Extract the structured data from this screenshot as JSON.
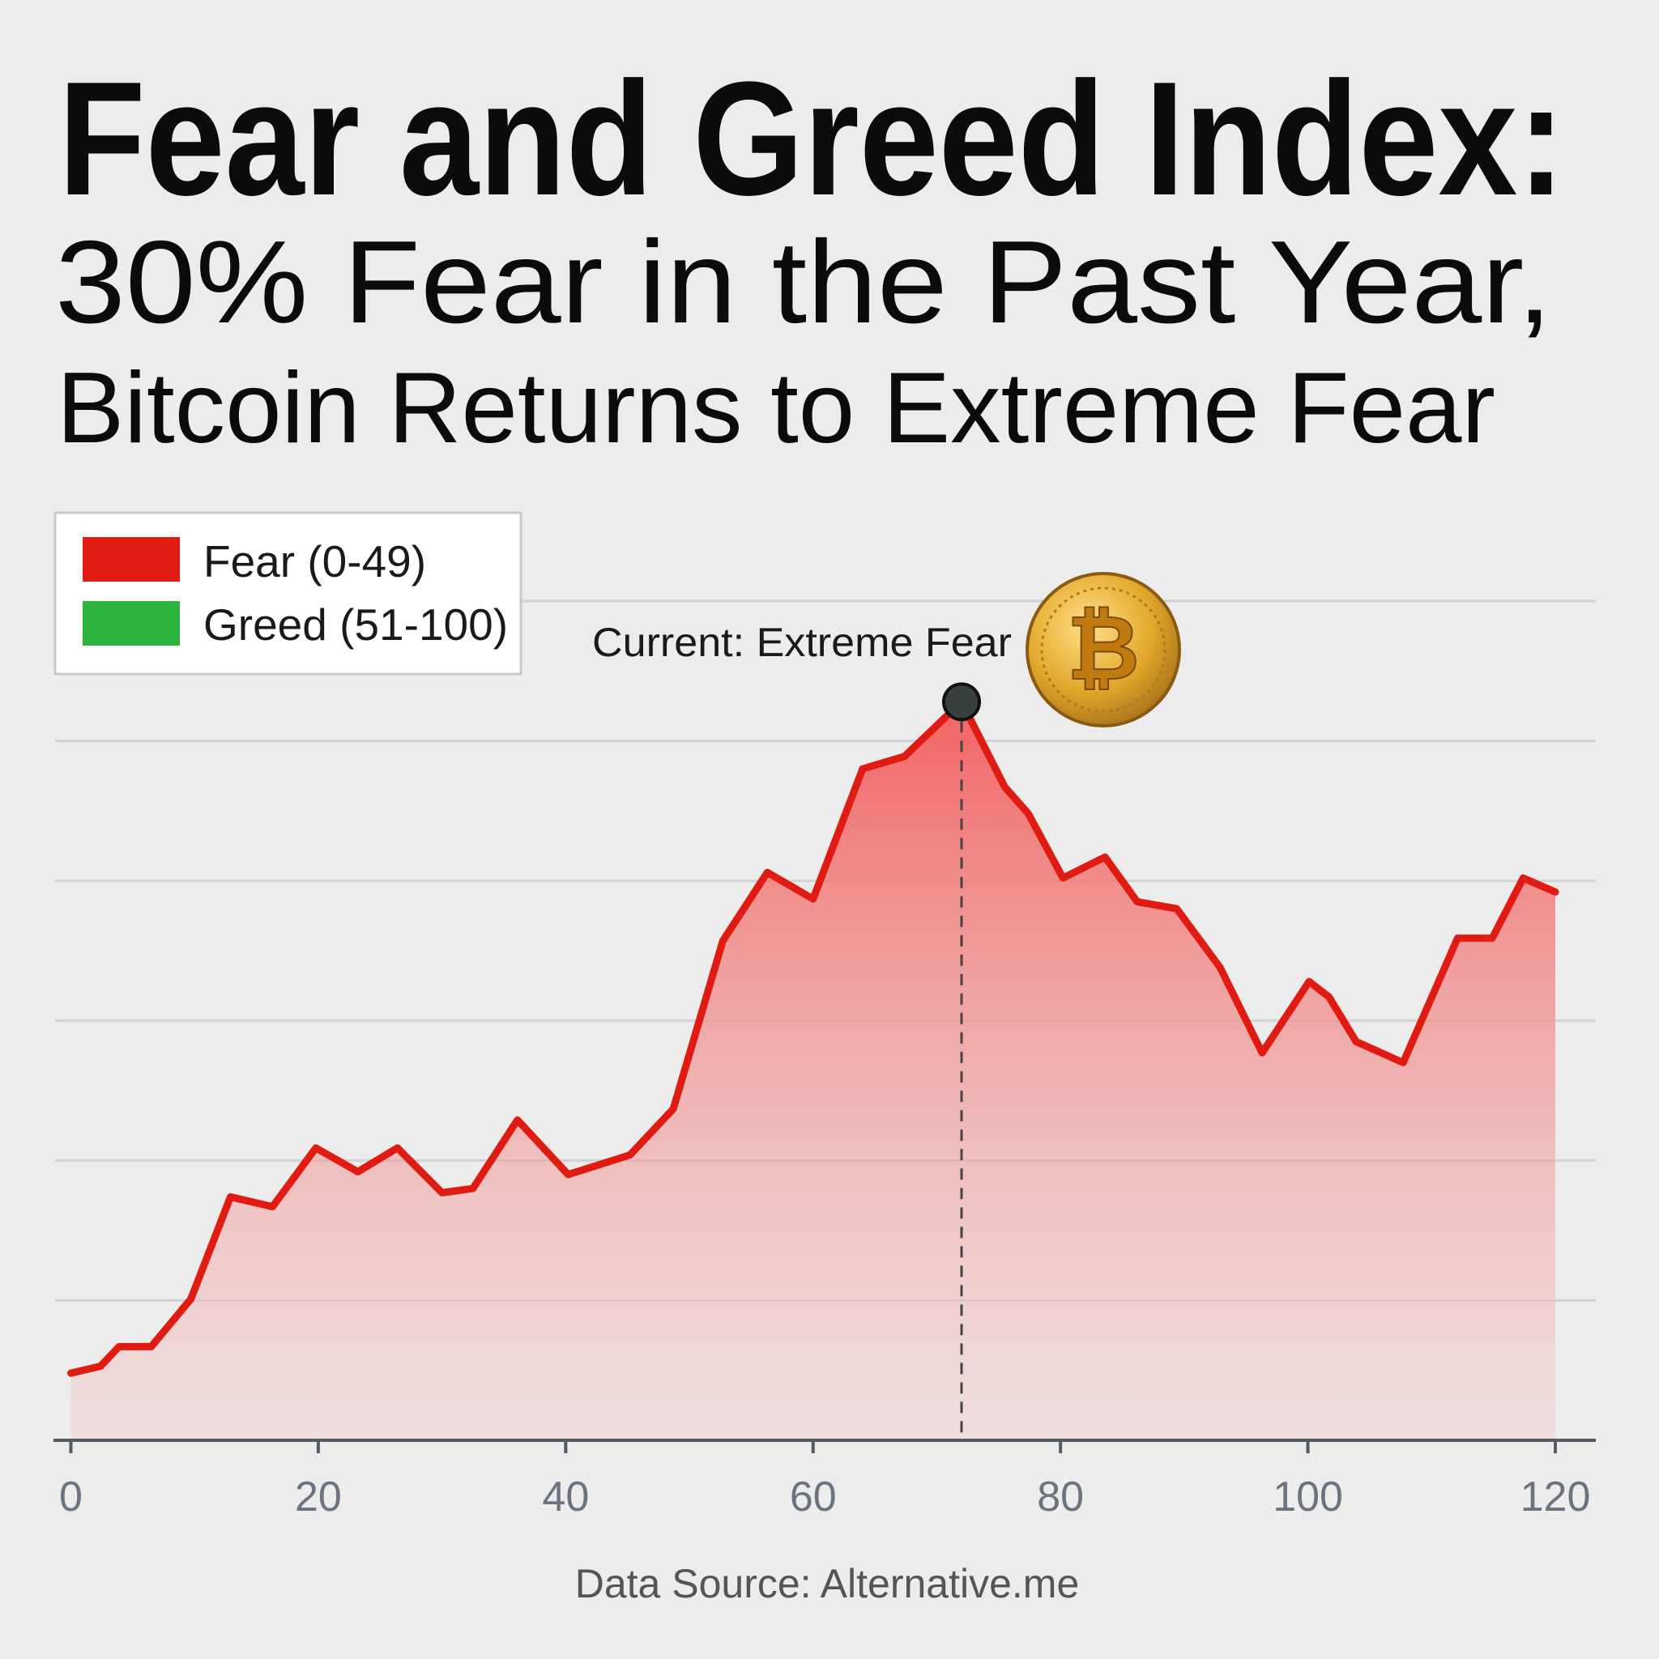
{
  "title": {
    "line1": "Fear and Greed Index:",
    "line2": "30% Fear in the Past Year,",
    "line3": "Bitcoin Returns to Extreme Fear"
  },
  "legend": {
    "items": [
      {
        "label": "Fear (0-49)",
        "color": "#e01b12"
      },
      {
        "label": "Greed (51-100)",
        "color": "#2bb53c"
      }
    ]
  },
  "annotation": {
    "label": "Current: Extreme Fear",
    "icon": "bitcoin-coin-icon",
    "x": 72
  },
  "source": "Data Source: Alternative.me",
  "chart_data": {
    "type": "area",
    "title": "",
    "xlabel": "",
    "ylabel": "",
    "xlim": [
      0,
      120
    ],
    "ylim": [
      0,
      60
    ],
    "grid": true,
    "legend_position": "top-left",
    "x_ticks": [
      "0",
      "20",
      "40",
      "60",
      "80",
      "100",
      "120"
    ],
    "line_color": "#e01b12",
    "fill_color": "#f26b6b",
    "series": [
      {
        "x": [
          0,
          2.4,
          3.9,
          6.5,
          9.7,
          12.9,
          16.3,
          19.8,
          23.2,
          26.4,
          30,
          32.5,
          36.1,
          40.2,
          45.2,
          48.7,
          52.7,
          56.3,
          60,
          64,
          67.4,
          72,
          75.5,
          77.4,
          80.2,
          83.6,
          86.2,
          89.4,
          92.9,
          96.3,
          100.1,
          101.7,
          103.9,
          107.7,
          112.1,
          114.9,
          117.4,
          120
        ],
        "y": [
          4.8,
          5.3,
          6.7,
          6.7,
          10.1,
          17.4,
          16.7,
          20.9,
          19.2,
          20.9,
          17.7,
          18,
          22.9,
          19,
          20.4,
          23.7,
          35.7,
          40.6,
          38.7,
          48,
          48.9,
          52.8,
          46.7,
          44.8,
          40.2,
          41.7,
          38.5,
          38,
          33.8,
          27.7,
          32.8,
          31.7,
          28.5,
          27,
          35.9,
          35.9,
          40.2,
          39.2
        ]
      }
    ]
  }
}
